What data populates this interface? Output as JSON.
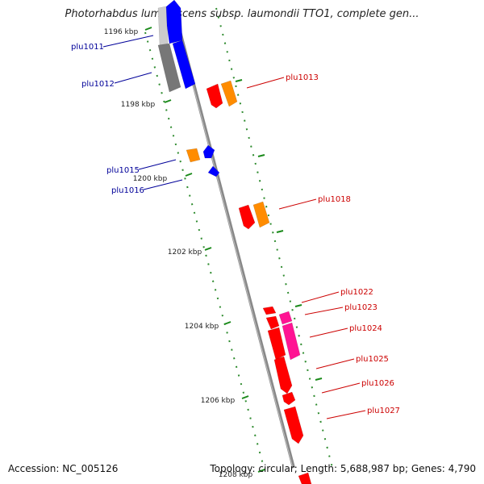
{
  "title": "Photorhabdus luminescens subsp. laumondii TTO1, complete gen...",
  "footer": {
    "accession": "Accession: NC_005126",
    "summary": "Topology: circular; Length: 5,688,987 bp; Genes: 4,790"
  },
  "colors": {
    "forward_outer": "#0000ff",
    "reverse_outer": "#ff0000",
    "reverse_orange": "#ff8c00",
    "reverse_pink": "#ff1493",
    "gray": "#777777",
    "tick": "#1a8a1a",
    "label_left": "#000099",
    "label_right": "#cc0000"
  },
  "ticks": [
    {
      "label": "1196 kbp"
    },
    {
      "label": "1198 kbp"
    },
    {
      "label": "1200 kbp"
    },
    {
      "label": "1202 kbp"
    },
    {
      "label": "1204 kbp"
    },
    {
      "label": "1206 kbp"
    },
    {
      "label": "1208 kbp"
    }
  ],
  "genes": [
    {
      "name": "plu1011",
      "strand": "forward"
    },
    {
      "name": "plu1012",
      "strand": "forward"
    },
    {
      "name": "plu1013",
      "strand": "reverse"
    },
    {
      "name": "plu1015",
      "strand": "forward"
    },
    {
      "name": "plu1016",
      "strand": "forward"
    },
    {
      "name": "plu1018",
      "strand": "reverse"
    },
    {
      "name": "plu1022",
      "strand": "reverse"
    },
    {
      "name": "plu1023",
      "strand": "reverse"
    },
    {
      "name": "plu1024",
      "strand": "reverse"
    },
    {
      "name": "plu1025",
      "strand": "reverse"
    },
    {
      "name": "plu1026",
      "strand": "reverse"
    },
    {
      "name": "plu1027",
      "strand": "reverse"
    }
  ]
}
